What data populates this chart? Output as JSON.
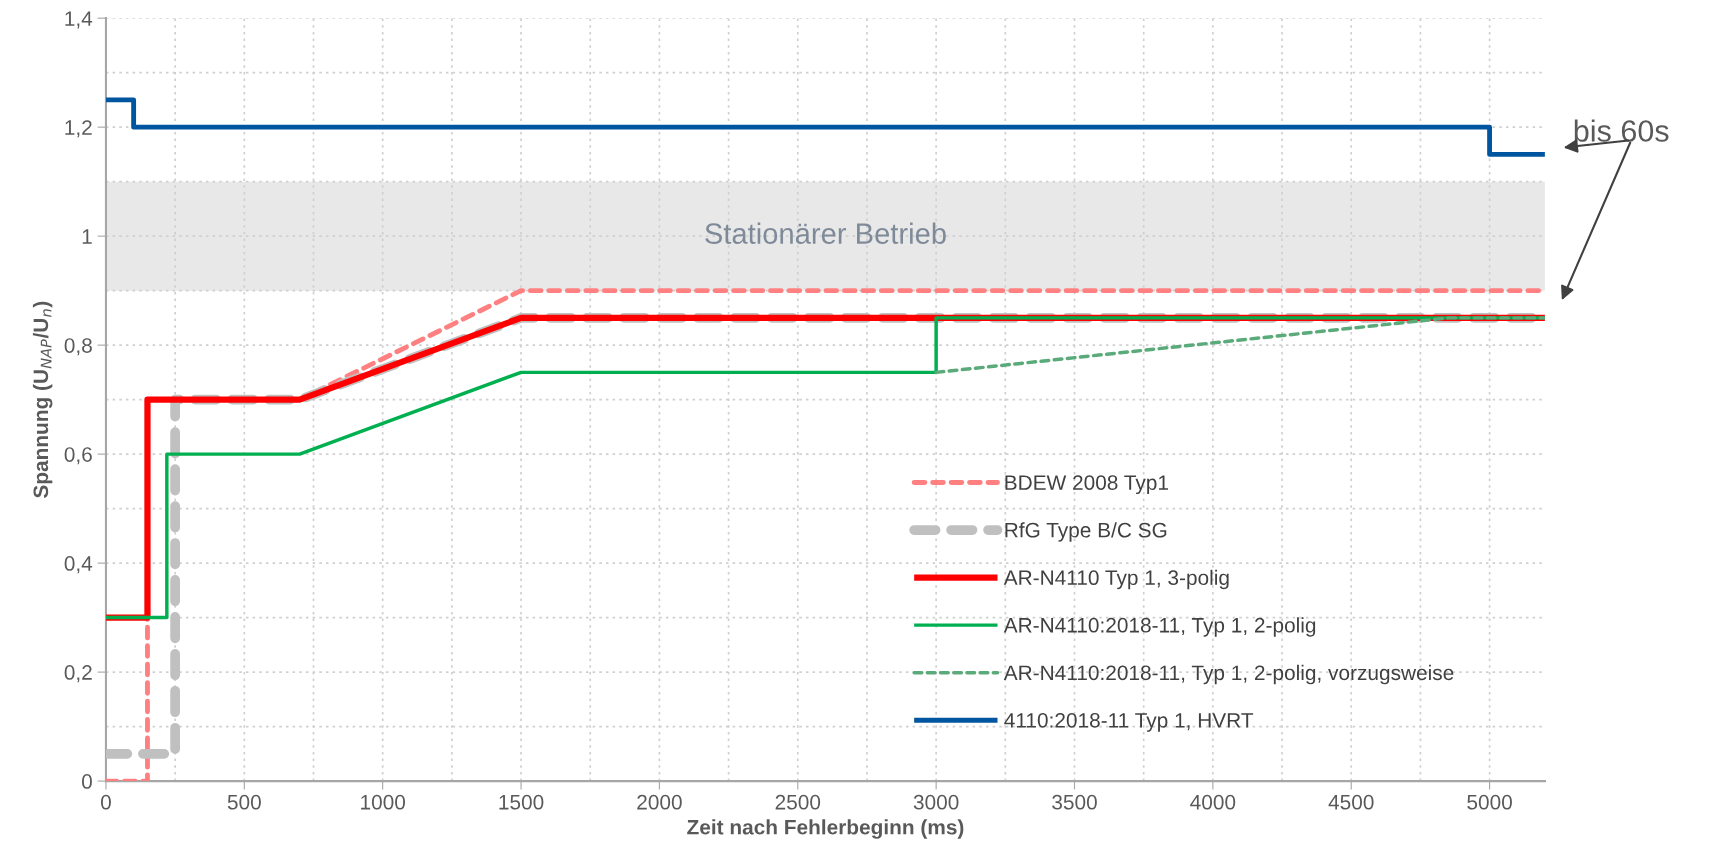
{
  "chart_data": {
    "type": "line",
    "xlabel": "Zeit nach Fehlerbeginn (ms)",
    "ylabel": "Spannung (U$_{NAP}$/U$_{n}$)",
    "xlim": [
      0,
      5200
    ],
    "ylim": [
      0,
      1.4
    ],
    "xticks": [
      0,
      {
        "value": 250,
        "label": null
      },
      500,
      {
        "value": 750,
        "label": null
      },
      1000,
      {
        "value": 1250,
        "label": null
      },
      1500,
      {
        "value": 1750,
        "label": null
      },
      2000,
      {
        "value": 2250,
        "label": null
      },
      2500,
      {
        "value": 2750,
        "label": null
      },
      3000,
      {
        "value": 3250,
        "label": null
      },
      3500,
      {
        "value": 3750,
        "label": null
      },
      4000,
      {
        "value": 4250,
        "label": null
      },
      4500,
      {
        "value": 4750,
        "label": null
      },
      5000
    ],
    "yticks": [
      0,
      {
        "value": 0.1,
        "label": null
      },
      {
        "value": 0.2,
        "label": "0,2"
      },
      {
        "value": 0.3,
        "label": null
      },
      {
        "value": 0.4,
        "label": "0,4"
      },
      {
        "value": 0.5,
        "label": null
      },
      {
        "value": 0.6,
        "label": "0,6"
      },
      {
        "value": 0.7,
        "label": null
      },
      {
        "value": 0.8,
        "label": "0,8"
      },
      {
        "value": 0.9,
        "label": null
      },
      1,
      {
        "value": 1.1,
        "label": null
      },
      {
        "value": 1.2,
        "label": "1,2"
      },
      {
        "value": 1.3,
        "label": null
      },
      {
        "value": 1.4,
        "label": "1,4"
      }
    ],
    "grid": true,
    "legend": "bottom right",
    "marker": "none",
    "bands": [
      {
        "axis": "y",
        "from": 0.9,
        "to": 1.1,
        "label": "Stationärer Betrieb",
        "color": "#e8e8e8"
      }
    ],
    "annotations": [
      "bis 60s"
    ],
    "series": [
      {
        "name": "BDEW 2008 Typ1",
        "color": "#ff8080",
        "line_style": "dashed",
        "x": [
          0,
          150,
          150,
          700,
          1500,
          5200
        ],
        "values": [
          0,
          0,
          0.7,
          0.7,
          0.9,
          0.9
        ]
      },
      {
        "name": "RfG Type B/C SG",
        "color": "#c0c0c0",
        "line_style": "dashed",
        "x": [
          0,
          250,
          250,
          700,
          1500,
          5200
        ],
        "values": [
          0.05,
          0.05,
          0.7,
          0.7,
          0.85,
          0.85
        ]
      },
      {
        "name": "AR-N4110 Typ 1, 3-polig",
        "color": "#ff0000",
        "line_style": "solid",
        "x": [
          0,
          150,
          150,
          700,
          1500,
          5200
        ],
        "values": [
          0.3,
          0.3,
          0.7,
          0.7,
          0.85,
          0.85
        ]
      },
      {
        "name": "AR-N4110:2018-11, Typ 1, 2-polig",
        "color": "#00b050",
        "line_style": "solid",
        "x": [
          0,
          220,
          220,
          700,
          1500,
          3000,
          3000,
          5200
        ],
        "values": [
          0.3,
          0.3,
          0.6,
          0.6,
          0.75,
          0.75,
          0.85,
          0.85
        ]
      },
      {
        "name": "AR-N4110:2018-11, Typ 1, 2-polig, vorzugsweise",
        "color": "#5aaa7a",
        "line_style": "dashed",
        "x": [
          3000,
          4850,
          5200
        ],
        "values": [
          0.75,
          0.85,
          0.85
        ]
      },
      {
        "name": "4110:2018-11 Typ 1, HVRT",
        "color": "#0055a0",
        "line_style": "solid",
        "x": [
          0,
          100,
          100,
          5000,
          5000,
          5200
        ],
        "values": [
          1.25,
          1.25,
          1.2,
          1.2,
          1.15,
          1.15
        ]
      }
    ]
  }
}
